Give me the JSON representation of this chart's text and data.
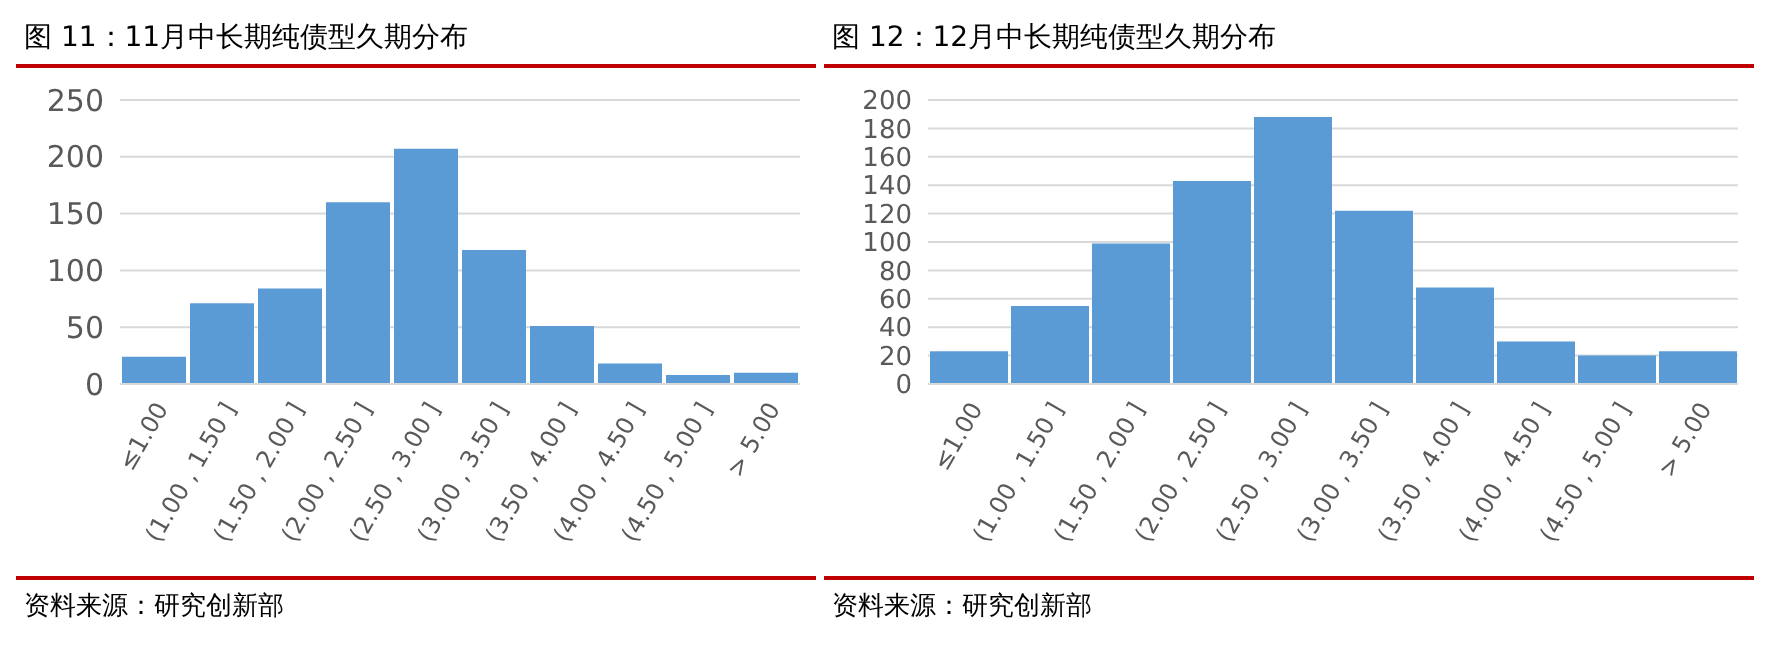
{
  "chart_data": [
    {
      "type": "bar",
      "title": "图 11：11月中长期纯债型久期分布",
      "categories": [
        "≤1.00",
        "(1.00 , 1.50 ]",
        "(1.50 , 2.00 ]",
        "(2.00 , 2.50 ]",
        "(2.50 , 3.00 ]",
        "(3.00 , 3.50 ]",
        "(3.50 , 4.00 ]",
        "(4.00 , 4.50 ]",
        "(4.50 , 5.00 ]",
        "> 5.00"
      ],
      "values": [
        24,
        71,
        84,
        160,
        207,
        118,
        51,
        18,
        8,
        10
      ],
      "color": "#5b9bd5",
      "ylim": [
        0,
        250
      ],
      "yticks": [
        0,
        50,
        100,
        150,
        200,
        250
      ],
      "grid": "y",
      "annotations": [
        "资料来源：研究创新部"
      ]
    },
    {
      "type": "bar",
      "title": "图 12：12月中长期纯债型久期分布",
      "categories": [
        "≤1.00",
        "(1.00 , 1.50 ]",
        "(1.50 , 2.00 ]",
        "(2.00 , 2.50 ]",
        "(2.50 , 3.00 ]",
        "(3.00 , 3.50 ]",
        "(3.50 , 4.00 ]",
        "(4.00 , 4.50 ]",
        "(4.50 , 5.00 ]",
        "> 5.00"
      ],
      "values": [
        23,
        55,
        99,
        143,
        188,
        122,
        68,
        30,
        20,
        23
      ],
      "color": "#5b9bd5",
      "ylim": [
        0,
        200
      ],
      "yticks": [
        0,
        20,
        40,
        60,
        80,
        100,
        120,
        140,
        160,
        180,
        200
      ],
      "grid": "y",
      "annotations": [
        "资料来源：研究创新部"
      ]
    }
  ]
}
